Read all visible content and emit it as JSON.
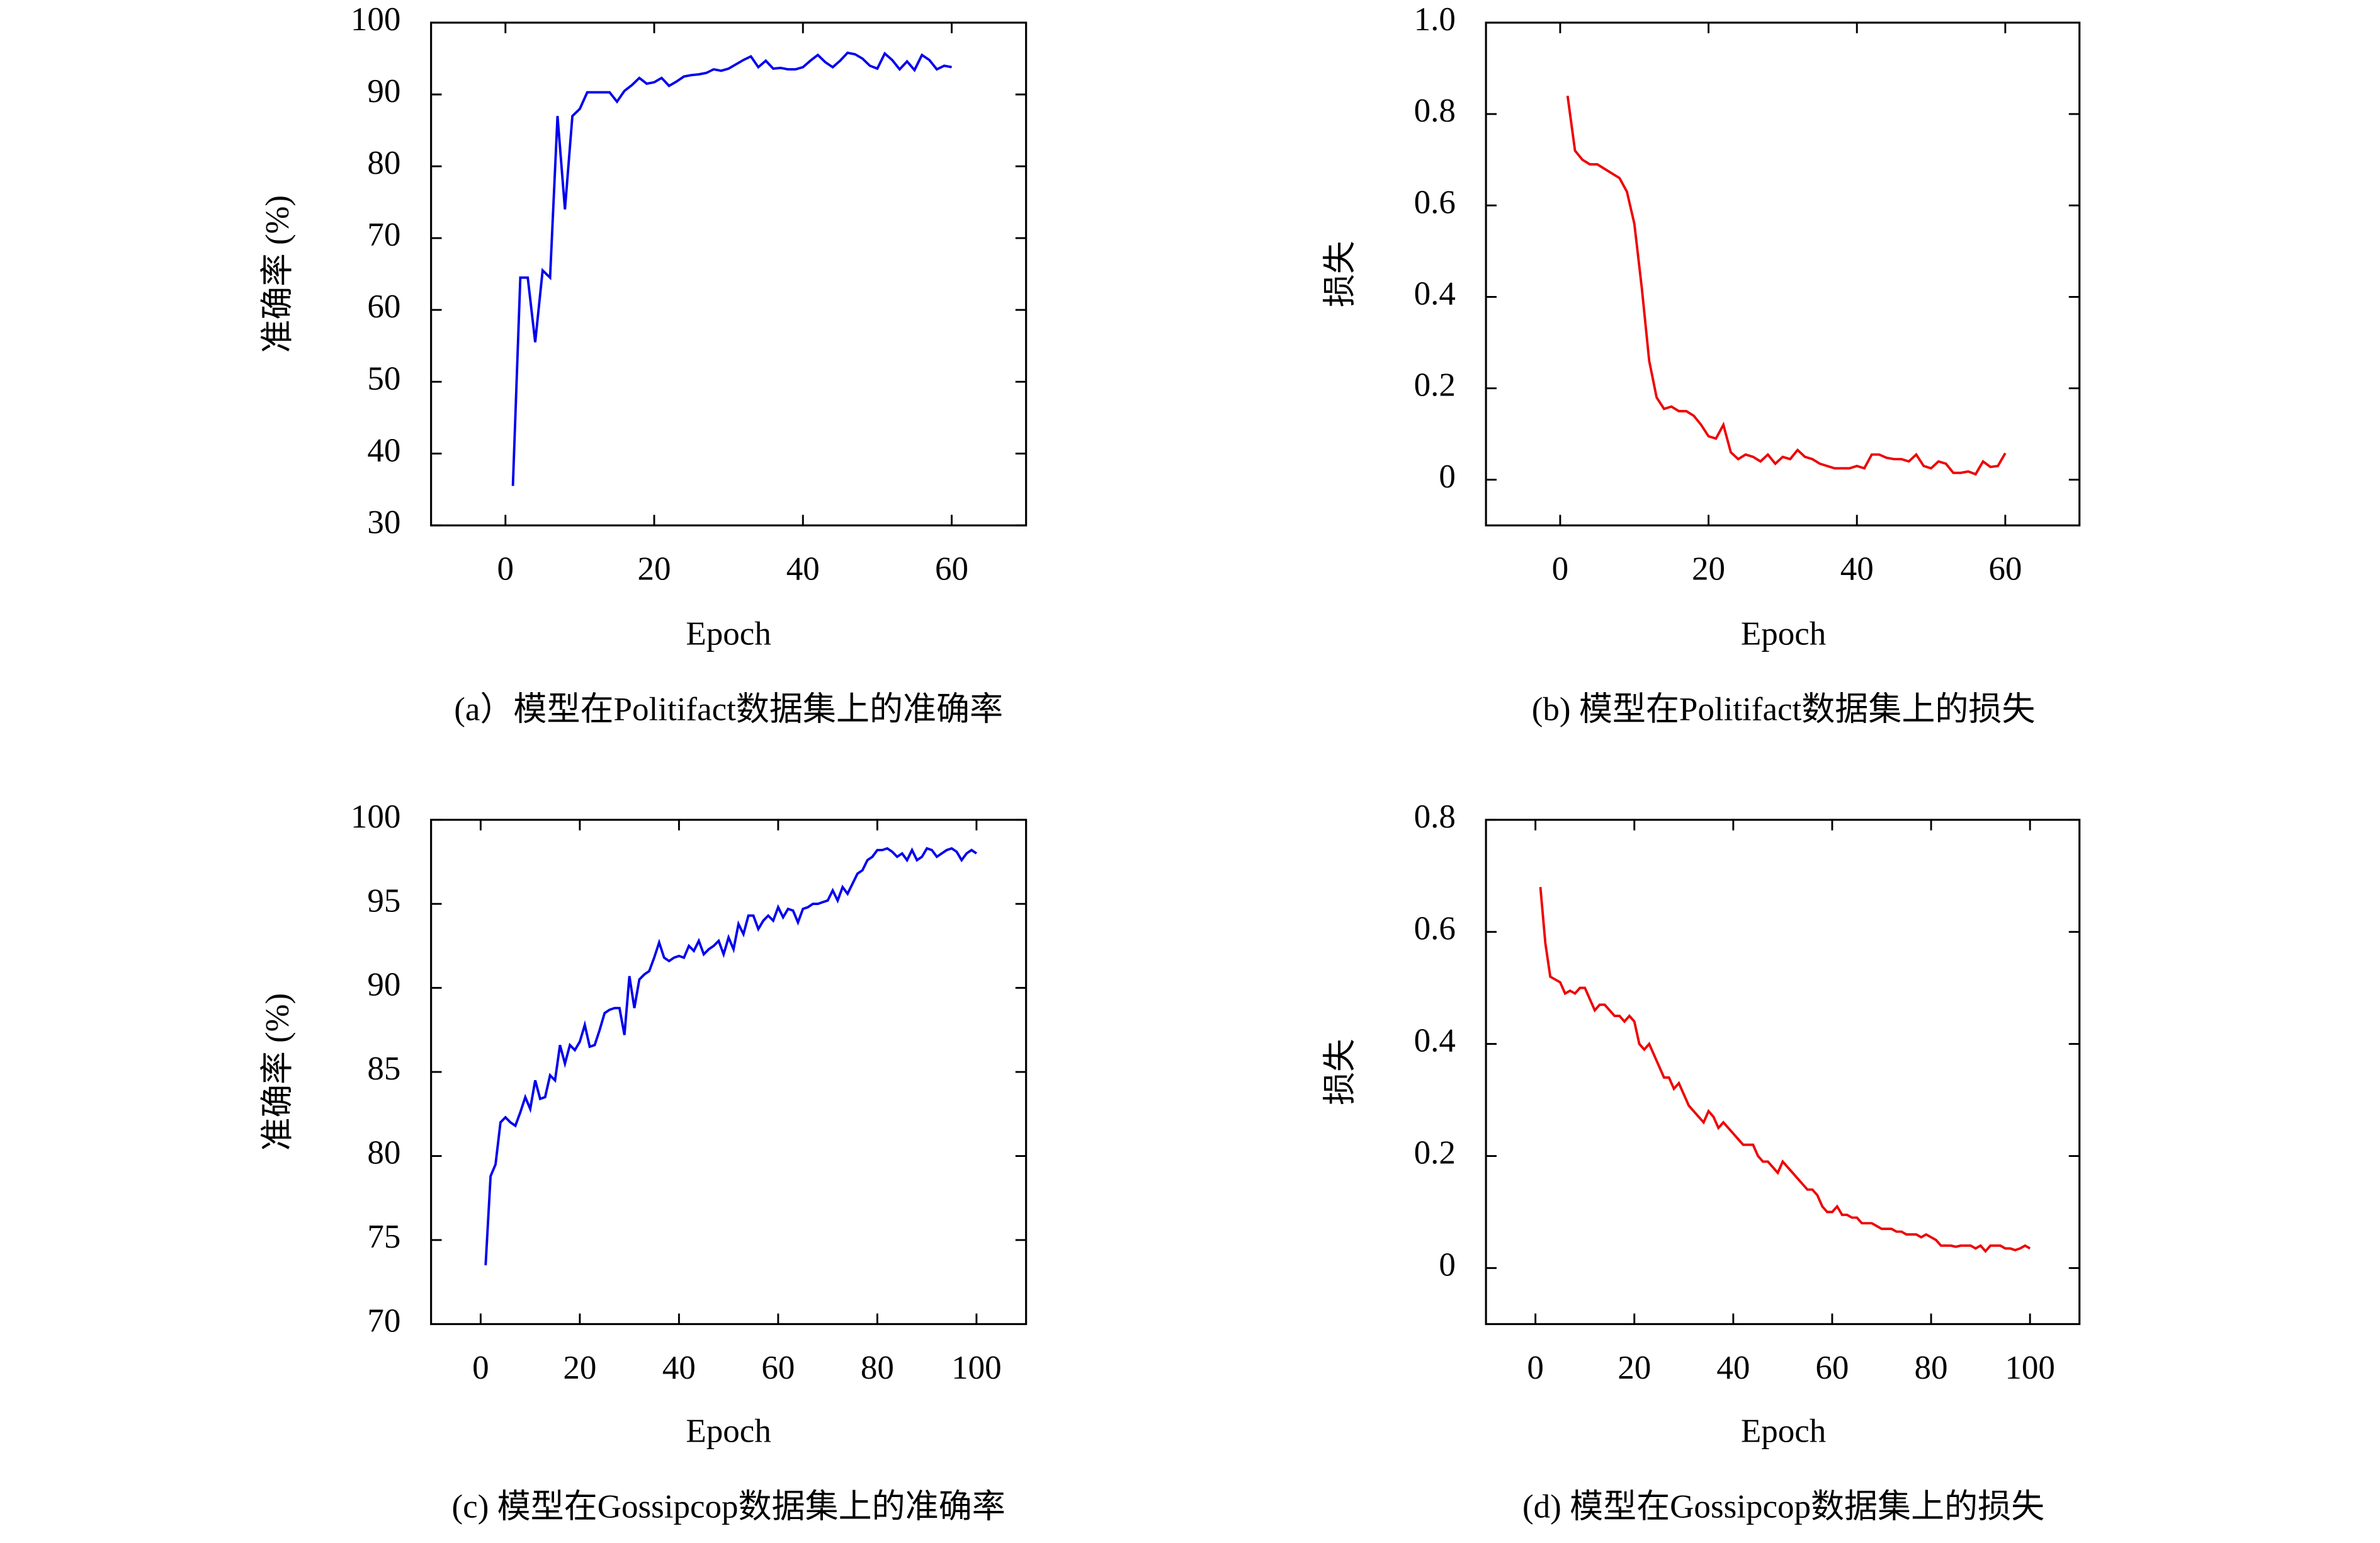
{
  "chart_data": [
    {
      "type": "line",
      "xlabel": "Epoch",
      "ylabel": "准确率 (%)",
      "caption": "(a）模型在Politifact数据集上的准确率",
      "xlim": [
        -10,
        70
      ],
      "xticks": [
        0,
        20,
        40,
        60
      ],
      "ylim": [
        30,
        100
      ],
      "yticks": [
        30,
        40,
        50,
        60,
        70,
        80,
        90,
        100
      ],
      "x": [
        1,
        2,
        3,
        4,
        5,
        6,
        7,
        8,
        9,
        10,
        11,
        12,
        13,
        14,
        15,
        16,
        17,
        18,
        19,
        20,
        21,
        22,
        23,
        24,
        25,
        26,
        27,
        28,
        29,
        30,
        31,
        32,
        33,
        34,
        35,
        36,
        37,
        38,
        39,
        40,
        41,
        42,
        43,
        44,
        45,
        46,
        47,
        48,
        49,
        50,
        51,
        52,
        53,
        54,
        55,
        56,
        57,
        58,
        59,
        60
      ],
      "series": [
        {
          "color": "#0000ee",
          "values": [
            35.5,
            64.5,
            64.5,
            55.5,
            65.5,
            64.5,
            87,
            74,
            87,
            88,
            90.3,
            90.3,
            90.3,
            90.3,
            89,
            90.5,
            91.3,
            92.3,
            91.5,
            91.7,
            92.3,
            91.2,
            91.8,
            92.5,
            92.7,
            92.8,
            93,
            93.5,
            93.3,
            93.6,
            94.2,
            94.8,
            95.3,
            93.8,
            94.7,
            93.6,
            93.7,
            93.5,
            93.5,
            93.8,
            94.7,
            95.5,
            94.5,
            93.8,
            94.7,
            95.8,
            95.6,
            95,
            94,
            93.6,
            95.7,
            94.8,
            93.5,
            94.6,
            93.4,
            95.5,
            94.8,
            93.5,
            94,
            93.8
          ]
        }
      ]
    },
    {
      "type": "line",
      "xlabel": "Epoch",
      "ylabel": "损失",
      "caption": "(b) 模型在Politifact数据集上的损失",
      "xlim": [
        -10,
        70
      ],
      "xticks": [
        0,
        20,
        40,
        60
      ],
      "ylim": [
        -0.1,
        1
      ],
      "yticks": [
        0,
        0.2,
        0.4,
        0.6,
        0.8,
        {
          "value": 1,
          "label": "1.0"
        }
      ],
      "x": [
        1,
        2,
        3,
        4,
        5,
        6,
        7,
        8,
        9,
        10,
        11,
        12,
        13,
        14,
        15,
        16,
        17,
        18,
        19,
        20,
        21,
        22,
        23,
        24,
        25,
        26,
        27,
        28,
        29,
        30,
        31,
        32,
        33,
        34,
        35,
        36,
        37,
        38,
        39,
        40,
        41,
        42,
        43,
        44,
        45,
        46,
        47,
        48,
        49,
        50,
        51,
        52,
        53,
        54,
        55,
        56,
        57,
        58,
        59,
        60
      ],
      "series": [
        {
          "color": "#ee0000",
          "values": [
            0.84,
            0.72,
            0.7,
            0.69,
            0.69,
            0.68,
            0.67,
            0.66,
            0.63,
            0.56,
            0.42,
            0.26,
            0.18,
            0.155,
            0.16,
            0.15,
            0.15,
            0.14,
            0.12,
            0.095,
            0.09,
            0.12,
            0.06,
            0.045,
            0.055,
            0.05,
            0.04,
            0.055,
            0.035,
            0.05,
            0.045,
            0.065,
            0.05,
            0.045,
            0.035,
            0.03,
            0.025,
            0.025,
            0.025,
            0.03,
            0.025,
            0.055,
            0.055,
            0.048,
            0.045,
            0.045,
            0.04,
            0.055,
            0.03,
            0.025,
            0.04,
            0.035,
            0.015,
            0.015,
            0.018,
            0.012,
            0.04,
            0.028,
            0.03,
            0.058
          ]
        }
      ]
    },
    {
      "type": "line",
      "xlabel": "Epoch",
      "ylabel": "准确率 (%)",
      "caption": "(c) 模型在Gossipcop数据集上的准确率",
      "xlim": [
        -10,
        110
      ],
      "xticks": [
        0,
        20,
        40,
        60,
        80,
        100
      ],
      "ylim": [
        70,
        100
      ],
      "yticks": [
        70,
        75,
        80,
        85,
        90,
        95,
        100
      ],
      "x": [
        1,
        2,
        3,
        4,
        5,
        6,
        7,
        8,
        9,
        10,
        11,
        12,
        13,
        14,
        15,
        16,
        17,
        18,
        19,
        20,
        21,
        22,
        23,
        24,
        25,
        26,
        27,
        28,
        29,
        30,
        31,
        32,
        33,
        34,
        35,
        36,
        37,
        38,
        39,
        40,
        41,
        42,
        43,
        44,
        45,
        46,
        47,
        48,
        49,
        50,
        51,
        52,
        53,
        54,
        55,
        56,
        57,
        58,
        59,
        60,
        61,
        62,
        63,
        64,
        65,
        66,
        67,
        68,
        69,
        70,
        71,
        72,
        73,
        74,
        75,
        76,
        77,
        78,
        79,
        80,
        81,
        82,
        83,
        84,
        85,
        86,
        87,
        88,
        89,
        90,
        91,
        92,
        93,
        94,
        95,
        96,
        97,
        98,
        99,
        100
      ],
      "series": [
        {
          "color": "#0000ee",
          "values": [
            73.5,
            78.8,
            79.5,
            82,
            82.3,
            82,
            81.8,
            82.6,
            83.5,
            82.8,
            84.5,
            83.4,
            83.5,
            84.8,
            84.5,
            86.6,
            85.5,
            86.6,
            86.3,
            86.8,
            87.8,
            86.5,
            86.6,
            87.5,
            88.5,
            88.7,
            88.8,
            88.8,
            87.2,
            90.7,
            88.8,
            90.5,
            90.8,
            91,
            91.8,
            92.7,
            91.8,
            91.6,
            91.8,
            91.9,
            91.8,
            92.5,
            92.2,
            92.8,
            92,
            92.3,
            92.5,
            92.8,
            92,
            93,
            92.3,
            93.8,
            93.2,
            94.3,
            94.3,
            93.5,
            94,
            94.3,
            94,
            94.8,
            94.2,
            94.7,
            94.6,
            93.9,
            94.7,
            94.8,
            95,
            95,
            95.1,
            95.2,
            95.8,
            95.2,
            96,
            95.6,
            96.2,
            96.8,
            97,
            97.6,
            97.8,
            98.2,
            98.2,
            98.3,
            98.1,
            97.8,
            98,
            97.6,
            98.2,
            97.6,
            97.8,
            98.3,
            98.2,
            97.8,
            98,
            98.2,
            98.3,
            98.1,
            97.6,
            98,
            98.2,
            98
          ]
        }
      ]
    },
    {
      "type": "line",
      "xlabel": "Epoch",
      "ylabel": "损失",
      "caption": "(d) 模型在Gossipcop数据集上的损失",
      "xlim": [
        -10,
        110
      ],
      "xticks": [
        0,
        20,
        40,
        60,
        80,
        100
      ],
      "ylim": [
        -0.1,
        0.8
      ],
      "yticks": [
        0,
        0.2,
        0.4,
        0.6,
        0.8
      ],
      "x": [
        1,
        2,
        3,
        4,
        5,
        6,
        7,
        8,
        9,
        10,
        11,
        12,
        13,
        14,
        15,
        16,
        17,
        18,
        19,
        20,
        21,
        22,
        23,
        24,
        25,
        26,
        27,
        28,
        29,
        30,
        31,
        32,
        33,
        34,
        35,
        36,
        37,
        38,
        39,
        40,
        41,
        42,
        43,
        44,
        45,
        46,
        47,
        48,
        49,
        50,
        51,
        52,
        53,
        54,
        55,
        56,
        57,
        58,
        59,
        60,
        61,
        62,
        63,
        64,
        65,
        66,
        67,
        68,
        69,
        70,
        71,
        72,
        73,
        74,
        75,
        76,
        77,
        78,
        79,
        80,
        81,
        82,
        83,
        84,
        85,
        86,
        87,
        88,
        89,
        90,
        91,
        92,
        93,
        94,
        95,
        96,
        97,
        98,
        99,
        100
      ],
      "series": [
        {
          "color": "#ee0000",
          "values": [
            0.68,
            0.58,
            0.52,
            0.515,
            0.51,
            0.49,
            0.495,
            0.49,
            0.5,
            0.5,
            0.48,
            0.46,
            0.47,
            0.47,
            0.46,
            0.45,
            0.45,
            0.44,
            0.45,
            0.44,
            0.4,
            0.39,
            0.4,
            0.38,
            0.36,
            0.34,
            0.34,
            0.32,
            0.33,
            0.31,
            0.29,
            0.28,
            0.27,
            0.26,
            0.28,
            0.27,
            0.25,
            0.26,
            0.25,
            0.24,
            0.23,
            0.22,
            0.22,
            0.22,
            0.2,
            0.19,
            0.19,
            0.18,
            0.17,
            0.19,
            0.18,
            0.17,
            0.16,
            0.15,
            0.14,
            0.14,
            0.13,
            0.11,
            0.1,
            0.1,
            0.11,
            0.095,
            0.095,
            0.09,
            0.09,
            0.08,
            0.08,
            0.08,
            0.075,
            0.07,
            0.07,
            0.07,
            0.065,
            0.065,
            0.06,
            0.06,
            0.06,
            0.055,
            0.06,
            0.055,
            0.05,
            0.04,
            0.04,
            0.04,
            0.038,
            0.04,
            0.04,
            0.04,
            0.035,
            0.04,
            0.03,
            0.04,
            0.04,
            0.04,
            0.035,
            0.035,
            0.032,
            0.035,
            0.04,
            0.035
          ]
        }
      ]
    }
  ]
}
